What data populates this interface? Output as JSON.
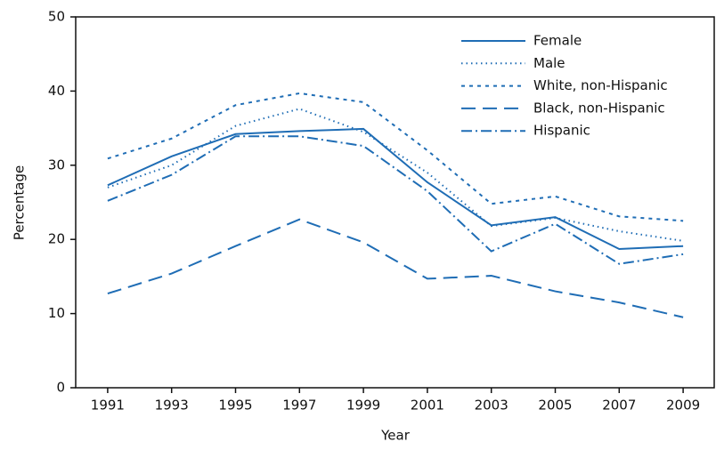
{
  "chart_data": {
    "type": "line",
    "x_label": "Year",
    "y_label": "Percentage",
    "x": [
      1991,
      1993,
      1995,
      1997,
      1999,
      2001,
      2003,
      2005,
      2007,
      2009
    ],
    "series": [
      {
        "name": "Female",
        "color": "#1f6db5",
        "dash": "solid",
        "values": [
          27.3,
          31.2,
          34.2,
          34.6,
          34.9,
          27.7,
          21.9,
          23.0,
          18.7,
          19.1
        ]
      },
      {
        "name": "Male",
        "color": "#1f6db5",
        "dash": "dotted",
        "values": [
          27.0,
          30.0,
          35.3,
          37.6,
          34.5,
          29.0,
          21.8,
          22.9,
          21.1,
          19.8
        ]
      },
      {
        "name": "White, non-Hispanic",
        "color": "#1f6db5",
        "dash": "dashed",
        "values": [
          30.9,
          33.6,
          38.1,
          39.7,
          38.5,
          32.0,
          24.8,
          25.8,
          23.1,
          22.5
        ]
      },
      {
        "name": "Black, non-Hispanic",
        "color": "#1f6db5",
        "dash": "longdash",
        "values": [
          12.7,
          15.4,
          19.1,
          22.7,
          19.6,
          14.7,
          15.1,
          13.0,
          11.5,
          9.5
        ]
      },
      {
        "name": "Hispanic",
        "color": "#1f6db5",
        "dash": "dashdot",
        "values": [
          25.2,
          28.7,
          33.9,
          33.9,
          32.6,
          26.5,
          18.4,
          22.1,
          16.7,
          18.0
        ]
      }
    ],
    "xlim": [
      1990,
      2010
    ],
    "xticks": [
      1991,
      1993,
      1995,
      1997,
      1999,
      2001,
      2003,
      2005,
      2007,
      2009
    ],
    "ylim": [
      0,
      50
    ],
    "yticks": [
      0,
      10,
      20,
      30,
      40,
      50
    ],
    "grid": false,
    "legend": "top-right"
  }
}
